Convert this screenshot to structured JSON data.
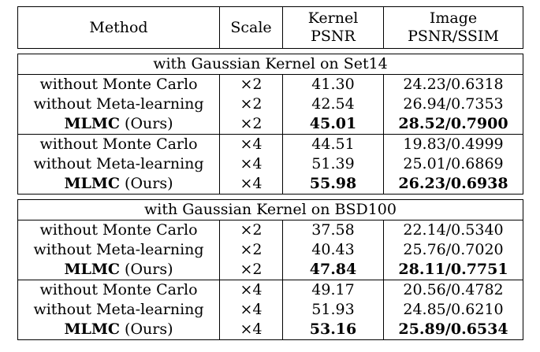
{
  "header": {
    "method": "Method",
    "scale": "Scale",
    "kernel_line1": "Kernel",
    "kernel_line2": "PSNR",
    "image_line1": "Image",
    "image_line2": "PSNR/SSIM"
  },
  "sections": [
    {
      "title": "with Gaussian Kernel on Set14",
      "rows": [
        {
          "method": "without Monte Carlo",
          "suffix": "",
          "scale": "×2",
          "kernel": "41.30",
          "image": "24.23/0.6318"
        },
        {
          "method": "without Meta-learning",
          "suffix": "",
          "scale": "×2",
          "kernel": "42.54",
          "image": "26.94/0.7353"
        },
        {
          "method": "MLMC",
          "suffix": " (Ours)",
          "scale": "×2",
          "kernel": "45.01",
          "image": "28.52/0.7900"
        },
        {
          "method": "without Monte Carlo",
          "suffix": "",
          "scale": "×4",
          "kernel": "44.51",
          "image": "19.83/0.4999"
        },
        {
          "method": "without Meta-learning",
          "suffix": "",
          "scale": "×4",
          "kernel": "51.39",
          "image": "25.01/0.6869"
        },
        {
          "method": "MLMC",
          "suffix": " (Ours)",
          "scale": "×4",
          "kernel": "55.98",
          "image": "26.23/0.6938"
        }
      ]
    },
    {
      "title": "with Gaussian Kernel on BSD100",
      "rows": [
        {
          "method": "without Monte Carlo",
          "suffix": "",
          "scale": "×2",
          "kernel": "37.58",
          "image": "22.14/0.5340"
        },
        {
          "method": "without Meta-learning",
          "suffix": "",
          "scale": "×2",
          "kernel": "40.43",
          "image": "25.76/0.7020"
        },
        {
          "method": "MLMC",
          "suffix": " (Ours)",
          "scale": "×2",
          "kernel": "47.84",
          "image": "28.11/0.7751"
        },
        {
          "method": "without Monte Carlo",
          "suffix": "",
          "scale": "×4",
          "kernel": "49.17",
          "image": "20.56/0.4782"
        },
        {
          "method": "without Meta-learning",
          "suffix": "",
          "scale": "×4",
          "kernel": "51.93",
          "image": "24.85/0.6210"
        },
        {
          "method": "MLMC",
          "suffix": " (Ours)",
          "scale": "×4",
          "kernel": "53.16",
          "image": "25.89/0.6534"
        }
      ]
    }
  ]
}
